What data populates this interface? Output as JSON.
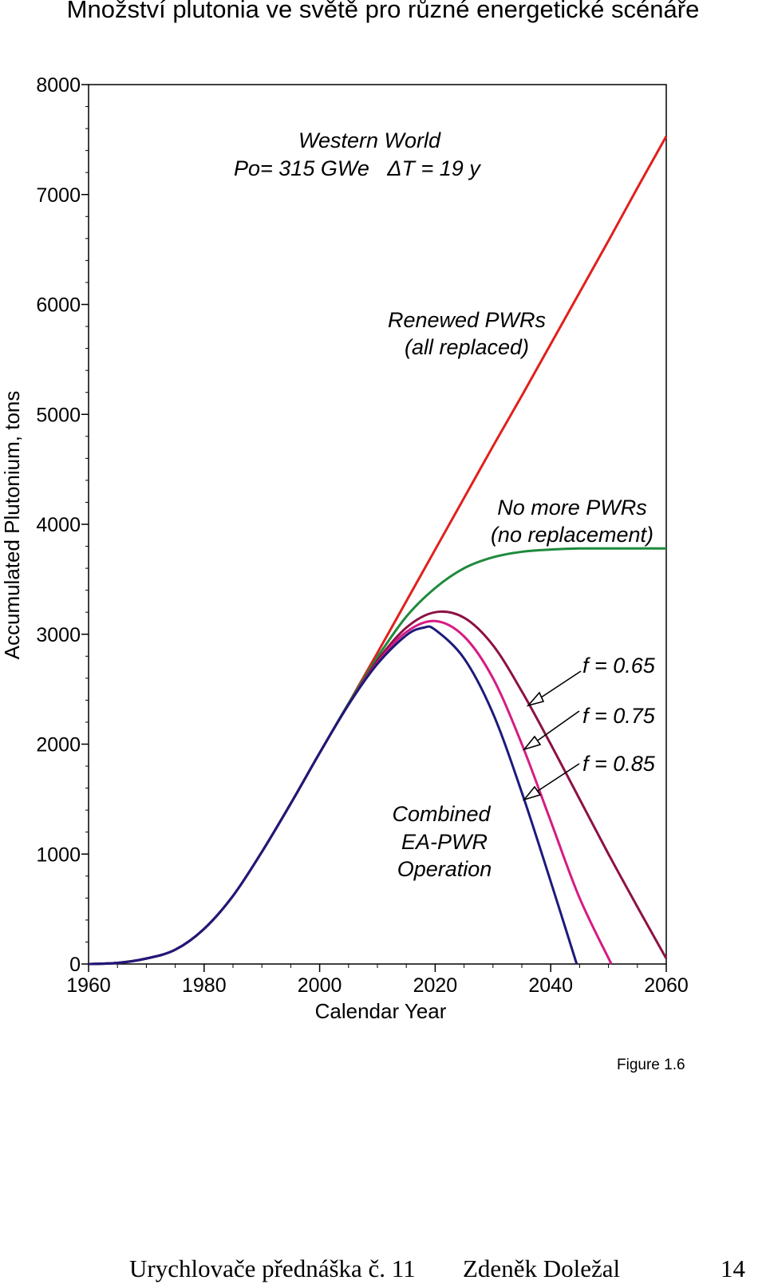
{
  "page": {
    "title": "Množství plutonia ve světě pro různé energetické scénáře",
    "footer_left": "Urychlovače přednáška č. 11",
    "footer_author": "Zdeněk Doležal",
    "footer_page": "14",
    "figure_label": "Figure 1.6"
  },
  "chart_data": {
    "type": "line",
    "xlabel": "Calendar Year",
    "ylabel": "Accumulated Plutonium, tons",
    "xlim": [
      1960,
      2060
    ],
    "ylim": [
      0,
      8000
    ],
    "x_ticks": [
      1960,
      1980,
      2000,
      2020,
      2040,
      2060
    ],
    "y_ticks": [
      0,
      1000,
      2000,
      3000,
      4000,
      5000,
      6000,
      7000,
      8000
    ],
    "grid": false,
    "annotations": {
      "header_line1": "Western World",
      "header_line2": "Po= 315 GWe   ΔT = 19 y",
      "renewed_line1": "Renewed PWRs",
      "renewed_line2": "(all replaced)",
      "nomore_line1": "No more PWRs",
      "nomore_line2": "(no replacement)",
      "f065": "f = 0.65",
      "f075": "f = 0.75",
      "f085": "f = 0.85",
      "combined_line1": "Combined",
      "combined_line2": "EA-PWR",
      "combined_line3": "Operation"
    },
    "series": [
      {
        "key": "renewed",
        "color": "#e0201c",
        "x": [
          1960,
          1965,
          1970,
          1975,
          1980,
          1985,
          1990,
          1995,
          2000,
          2005,
          2010,
          2015,
          2020,
          2025,
          2030,
          2035,
          2040,
          2045,
          2050,
          2055,
          2060
        ],
        "y": [
          0,
          10,
          50,
          130,
          320,
          620,
          1020,
          1460,
          1920,
          2370,
          2830,
          3300,
          3770,
          4240,
          4710,
          5170,
          5640,
          6110,
          6580,
          7060,
          7530
        ]
      },
      {
        "key": "no_more",
        "color": "#1e8a3c",
        "x": [
          1960,
          1965,
          1970,
          1975,
          1980,
          1985,
          1990,
          1995,
          2000,
          2005,
          2010,
          2015,
          2020,
          2025,
          2030,
          2035,
          2040,
          2045,
          2050,
          2055,
          2060
        ],
        "y": [
          0,
          10,
          50,
          130,
          320,
          620,
          1020,
          1460,
          1920,
          2370,
          2790,
          3160,
          3420,
          3600,
          3700,
          3750,
          3770,
          3780,
          3780,
          3780,
          3780
        ]
      },
      {
        "key": "f065",
        "color": "#8c1244",
        "x": [
          1960,
          1965,
          1970,
          1975,
          1980,
          1985,
          1990,
          1995,
          2000,
          2005,
          2010,
          2015,
          2020,
          2025,
          2030,
          2035,
          2040,
          2045,
          2050,
          2055,
          2060
        ],
        "y": [
          0,
          10,
          50,
          130,
          320,
          620,
          1020,
          1460,
          1920,
          2360,
          2760,
          3060,
          3200,
          3150,
          2900,
          2480,
          2000,
          1500,
          1000,
          520,
          50
        ]
      },
      {
        "key": "f075",
        "color": "#d61b83",
        "x": [
          1960,
          1965,
          1970,
          1975,
          1980,
          1985,
          1990,
          1995,
          2000,
          2005,
          2010,
          2015,
          2020,
          2025,
          2030,
          2035,
          2040,
          2045,
          2050.5
        ],
        "y": [
          0,
          10,
          50,
          130,
          320,
          620,
          1020,
          1460,
          1920,
          2360,
          2740,
          3020,
          3120,
          2980,
          2600,
          2000,
          1300,
          600,
          0
        ]
      },
      {
        "key": "f085",
        "color": "#1c1a7a",
        "x": [
          1960,
          1965,
          1970,
          1975,
          1980,
          1985,
          1990,
          1995,
          2000,
          2005,
          2010,
          2015,
          2018,
          2020,
          2025,
          2030,
          2035,
          2040,
          2044.5
        ],
        "y": [
          0,
          10,
          50,
          130,
          320,
          620,
          1020,
          1460,
          1920,
          2360,
          2730,
          2990,
          3060,
          3040,
          2780,
          2280,
          1560,
          750,
          0
        ]
      }
    ]
  }
}
